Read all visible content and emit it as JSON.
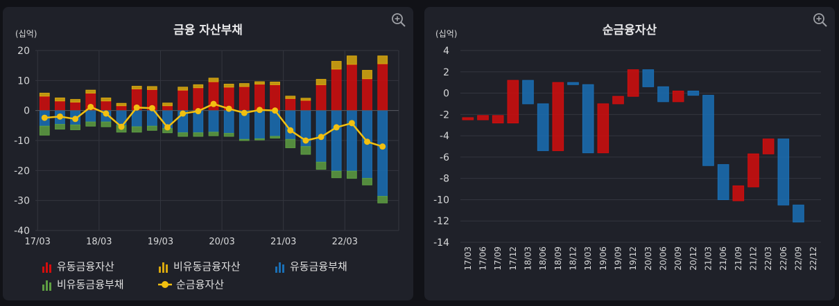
{
  "left_panel": {
    "title": "금융 자산부채",
    "unit": "(십억)",
    "legend": [
      {
        "label": "유동금융자산",
        "icon": "bar-chart-icon",
        "color": "#d40d0d"
      },
      {
        "label": "비유동금융자산",
        "icon": "bar-chart-icon",
        "color": "#d9a80e"
      },
      {
        "label": "유동금융부채",
        "icon": "bar-chart-icon",
        "color": "#1a6fb5"
      },
      {
        "label": "비유동금융부채",
        "icon": "bar-chart-icon",
        "color": "#5e9e42"
      },
      {
        "label": "순금융자산",
        "icon": "line-marker-icon",
        "color": "#f2c010"
      }
    ]
  },
  "right_panel": {
    "title": "순금융자산",
    "unit": "(십억)"
  },
  "chart_data": [
    {
      "type": "bar",
      "title": "금융 자산부채",
      "ylabel": "(십억)",
      "ylim": [
        -40,
        20
      ],
      "yticks": [
        20,
        10,
        0,
        -10,
        -20,
        -30,
        -40
      ],
      "xtick_labels": [
        "17/03",
        "18/03",
        "19/03",
        "20/03",
        "21/03",
        "22/03"
      ],
      "grid": true,
      "stacked": true,
      "categories": [
        "17/03",
        "17/06",
        "17/09",
        "17/12",
        "18/03",
        "18/06",
        "18/09",
        "18/12",
        "19/03",
        "19/06",
        "19/09",
        "19/12",
        "20/03",
        "20/06",
        "20/09",
        "20/12",
        "21/03",
        "21/06",
        "21/09",
        "21/12",
        "22/03",
        "22/06",
        "22/09"
      ],
      "series": [
        {
          "name": "유동금융자산",
          "color": "#d40d0d",
          "values": [
            4.8,
            3.2,
            2.8,
            5.8,
            3.2,
            1.6,
            7.2,
            7.0,
            1.6,
            6.8,
            7.6,
            9.6,
            7.8,
            8.0,
            8.8,
            8.6,
            4.0,
            3.4,
            8.6,
            13.8,
            15.4,
            10.6,
            15.6
          ]
        },
        {
          "name": "비유동금융자산",
          "color": "#d9a80e",
          "values": [
            1.0,
            1.0,
            0.9,
            1.0,
            1.0,
            0.8,
            0.9,
            1.0,
            0.9,
            1.0,
            1.0,
            1.2,
            1.0,
            1.0,
            0.8,
            0.9,
            0.8,
            0.7,
            1.8,
            2.6,
            2.8,
            2.8,
            2.6
          ]
        },
        {
          "name": "유동금융부채",
          "color": "#1a6fb5",
          "values": [
            -5.2,
            -4.6,
            -4.8,
            -3.8,
            -3.8,
            -5.0,
            -5.4,
            -5.2,
            -6.0,
            -7.4,
            -7.4,
            -7.2,
            -7.6,
            -9.6,
            -9.4,
            -8.6,
            -9.6,
            -12.0,
            -17.2,
            -20.2,
            -20.2,
            -22.6,
            -28.6
          ]
        },
        {
          "name": "비유동금융부채",
          "color": "#5e9e42",
          "values": [
            -3.0,
            -1.6,
            -1.6,
            -1.4,
            -1.6,
            -2.2,
            -1.8,
            -1.4,
            -1.4,
            -1.2,
            -1.2,
            -1.2,
            -1.0,
            -0.4,
            -0.4,
            -0.6,
            -2.8,
            -2.6,
            -2.4,
            -2.2,
            -2.4,
            -2.2,
            -2.2
          ]
        },
        {
          "name": "순금융자산",
          "type": "line",
          "color": "#f2c010",
          "values": [
            -2.4,
            -2.0,
            -2.8,
            1.2,
            -1.0,
            -5.4,
            1.0,
            0.8,
            -5.6,
            -1.0,
            -0.2,
            2.2,
            0.6,
            -0.8,
            0.2,
            0.0,
            -6.6,
            -10.0,
            -8.8,
            -5.6,
            -4.2,
            -10.4,
            -12.0
          ]
        }
      ]
    },
    {
      "type": "waterfall",
      "title": "순금융자산",
      "ylabel": "(십억)",
      "ylim": [
        -14,
        4
      ],
      "yticks": [
        4,
        2,
        0,
        -2,
        -4,
        -6,
        -8,
        -10,
        -12,
        -14
      ],
      "grid": true,
      "categories": [
        "17/03",
        "17/06",
        "17/09",
        "17/12",
        "18/03",
        "18/06",
        "18/09",
        "18/12",
        "19/03",
        "19/06",
        "19/09",
        "19/12",
        "20/03",
        "20/06",
        "20/09",
        "20/12",
        "21/03",
        "21/06",
        "21/09",
        "21/12",
        "22/03",
        "22/06",
        "22/09",
        "22/12"
      ],
      "increase_color": "#1a6fb5",
      "decrease_color": "#d40d0d",
      "steps": [
        {
          "from": -2.3,
          "to": -2.5
        },
        {
          "from": -2.1,
          "to": -2.5
        },
        {
          "from": -2.1,
          "to": -2.8
        },
        {
          "from": 1.2,
          "to": -2.8
        },
        {
          "from": -1.0,
          "to": 1.2
        },
        {
          "from": -5.4,
          "to": -1.0
        },
        {
          "from": 1.0,
          "to": -5.4
        },
        {
          "from": 0.8,
          "to": 1.0
        },
        {
          "from": -5.6,
          "to": 0.8
        },
        {
          "from": -1.0,
          "to": -5.6
        },
        {
          "from": -0.3,
          "to": -1.0
        },
        {
          "from": 2.2,
          "to": -0.3
        },
        {
          "from": 0.6,
          "to": 2.2
        },
        {
          "from": -0.8,
          "to": 0.6
        },
        {
          "from": 0.2,
          "to": -0.8
        },
        {
          "from": -0.2,
          "to": 0.2
        },
        {
          "from": -6.8,
          "to": -0.2
        },
        {
          "from": -10.0,
          "to": -6.7
        },
        {
          "from": -8.7,
          "to": -10.1
        },
        {
          "from": -5.7,
          "to": -8.8
        },
        {
          "from": -4.3,
          "to": -5.7
        },
        {
          "from": -10.5,
          "to": -4.3
        },
        {
          "from": -12.1,
          "to": -10.5
        },
        {
          "from": -12.1,
          "to": -12.1
        }
      ]
    }
  ]
}
